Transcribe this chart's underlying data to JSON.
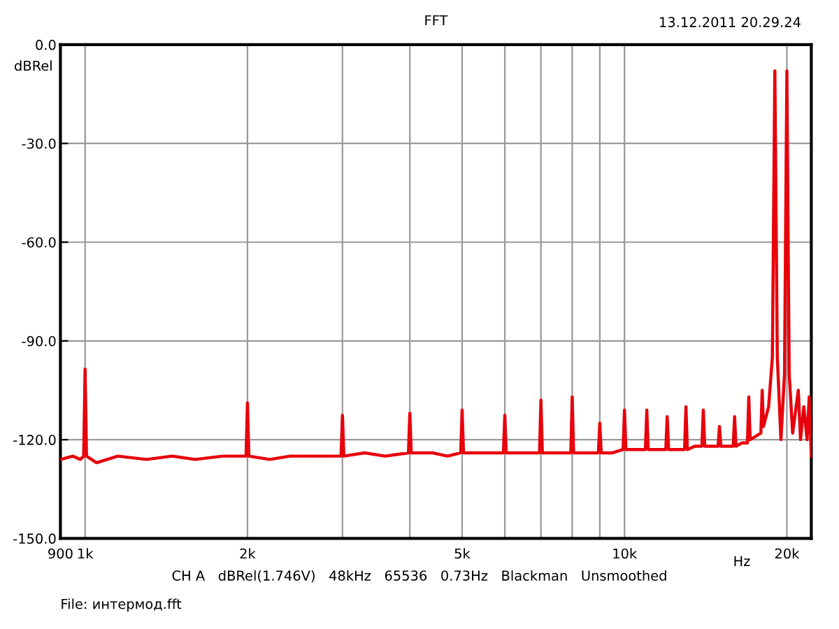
{
  "chart_data": {
    "type": "line",
    "title": "FFT",
    "ylabel": "dBRel",
    "xlabel": "Hz",
    "log": "x",
    "grid": true,
    "legend": false,
    "marker": "none",
    "line_style": "solid",
    "annotations": [
      "13.12.2011 20.29.24",
      "CH A   dBRel(1.746V)   48kHz   65536   0.73Hz   Blackman   Unsmoothed",
      "File: интермод.fft"
    ],
    "xlim": [
      900,
      22200
    ],
    "ylim": [
      -150,
      0
    ],
    "xticks": [
      {
        "value": 900,
        "label": "900"
      },
      {
        "value": 1000,
        "label": "1k"
      },
      {
        "value": 2000,
        "label": "2k"
      },
      {
        "value": 3000,
        "label": null
      },
      {
        "value": 4000,
        "label": null
      },
      {
        "value": 5000,
        "label": "5k"
      },
      {
        "value": 6000,
        "label": null
      },
      {
        "value": 7000,
        "label": null
      },
      {
        "value": 8000,
        "label": null
      },
      {
        "value": 9000,
        "label": null
      },
      {
        "value": 10000,
        "label": "10k"
      },
      {
        "value": 20000,
        "label": "20k"
      }
    ],
    "yticks": [
      {
        "value": 0,
        "label": "0.0"
      },
      {
        "value": -30,
        "label": "-30.0"
      },
      {
        "value": -60,
        "label": "-60.0"
      },
      {
        "value": -90,
        "label": "-90.0"
      },
      {
        "value": -120,
        "label": "-120.0"
      },
      {
        "value": -150,
        "label": "-150.0"
      }
    ],
    "series": [
      {
        "color": "#e8000b",
        "x": [
          900,
          950,
          980,
          994,
          1000,
          1006,
          1050,
          1150,
          1300,
          1450,
          1600,
          1800,
          1988,
          2000,
          2012,
          2200,
          2400,
          2600,
          2800,
          2982,
          3000,
          3018,
          3300,
          3600,
          3976,
          4000,
          4024,
          4400,
          4700,
          4970,
          5000,
          5030,
          5300,
          5600,
          5964,
          6000,
          6036,
          6500,
          6958,
          7000,
          7042,
          7500,
          7952,
          8000,
          8048,
          8500,
          8946,
          9000,
          9054,
          9500,
          9940,
          10000,
          10060,
          10500,
          10934,
          11000,
          11066,
          11500,
          11928,
          12000,
          12072,
          12500,
          12922,
          13000,
          13078,
          13500,
          13916,
          14000,
          14084,
          14500,
          14910,
          15000,
          15090,
          15500,
          15904,
          16000,
          16096,
          16500,
          16900,
          17000,
          17100,
          17500,
          17900,
          18000,
          18100,
          18500,
          18800,
          19000,
          19200,
          19500,
          19800,
          20000,
          20200,
          20500,
          21000,
          21200,
          21500,
          21800,
          22000,
          22200
        ],
        "values": [
          -126,
          -125,
          -126,
          -125,
          -98.6,
          -125,
          -127,
          -125,
          -126,
          -125,
          -126,
          -125,
          -125,
          -108.8,
          -125,
          -126,
          -125,
          -125,
          -125,
          -125,
          -112.6,
          -125,
          -124,
          -125,
          -124,
          -112,
          -124,
          -124,
          -125,
          -124,
          -111,
          -124,
          -124,
          -124,
          -124,
          -112.6,
          -124,
          -124,
          -124,
          -108,
          -124,
          -124,
          -124,
          -107,
          -124,
          -124,
          -124,
          -115,
          -124,
          -124,
          -123,
          -111,
          -123,
          -123,
          -123,
          -111,
          -123,
          -123,
          -123,
          -113,
          -123,
          -123,
          -123,
          -110,
          -123,
          -122,
          -122,
          -111,
          -122,
          -122,
          -122,
          -116,
          -122,
          -122,
          -122,
          -113,
          -122,
          -121,
          -121,
          -107,
          -120,
          -119,
          -118,
          -105,
          -116,
          -110,
          -95,
          -8,
          -95,
          -120,
          -100,
          -8,
          -100,
          -118,
          -105,
          -120,
          -110,
          -120,
          -107,
          -125
        ]
      }
    ]
  }
}
